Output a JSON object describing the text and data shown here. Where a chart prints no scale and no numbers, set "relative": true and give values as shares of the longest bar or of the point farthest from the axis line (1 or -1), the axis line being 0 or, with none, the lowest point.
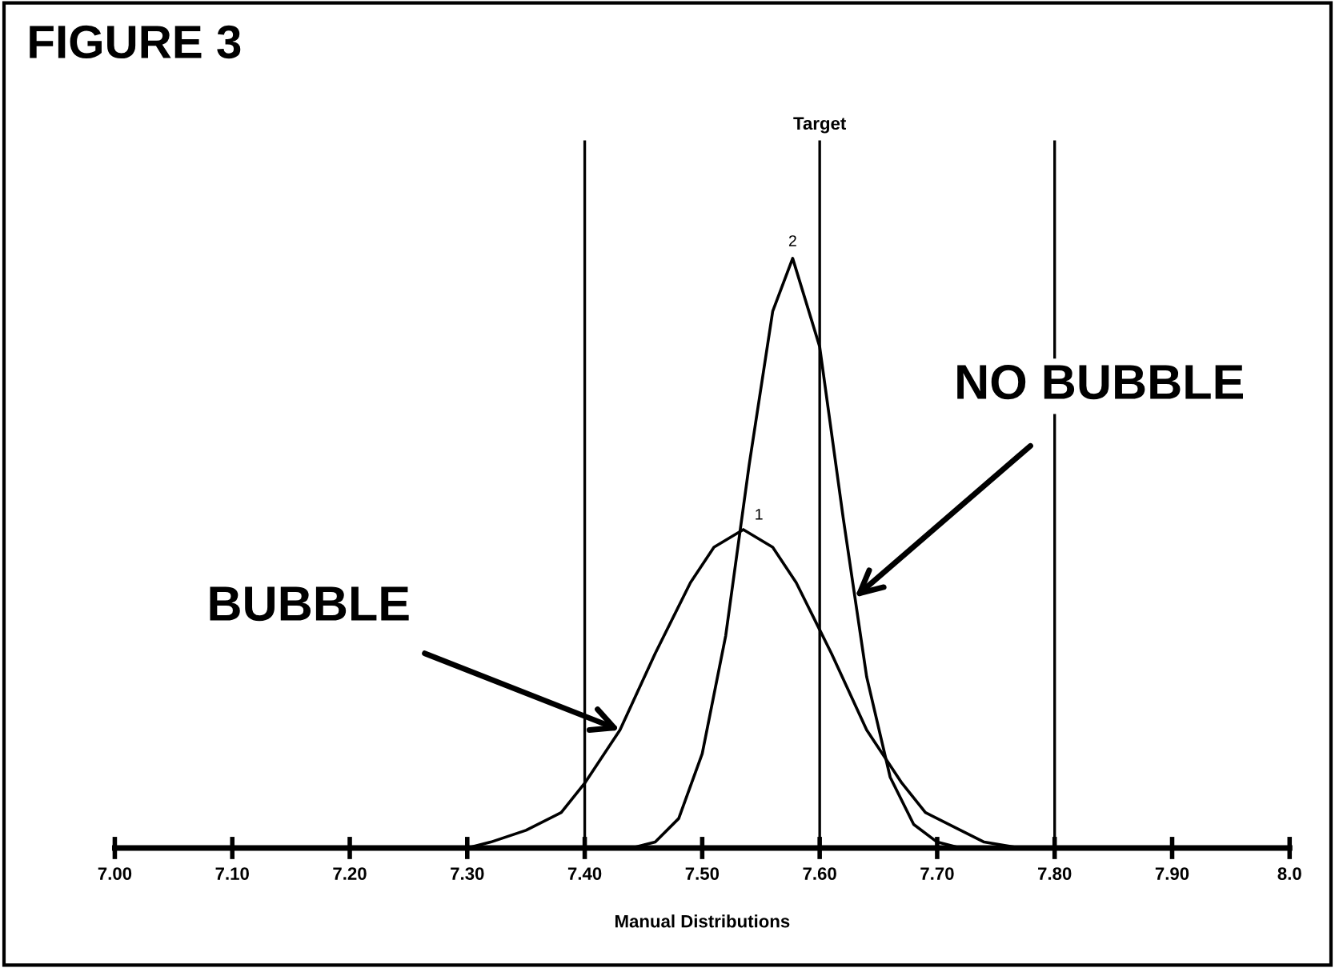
{
  "chart_data": {
    "type": "line",
    "title": "FIGURE 3",
    "xlabel": "Manual Distributions",
    "relative": true,
    "xlim": [
      7.0,
      8.0
    ],
    "xticks": [
      {
        "value": 7.0,
        "label": "7.00"
      },
      {
        "value": 7.1,
        "label": "7.10"
      },
      {
        "value": 7.2,
        "label": "7.20"
      },
      {
        "value": 7.3,
        "label": "7.30"
      },
      {
        "value": 7.4,
        "label": "7.40"
      },
      {
        "value": 7.5,
        "label": "7.50"
      },
      {
        "value": 7.6,
        "label": "7.60"
      },
      {
        "value": 7.7,
        "label": "7.70"
      },
      {
        "value": 7.8,
        "label": "7.80"
      },
      {
        "value": 7.9,
        "label": "7.90"
      },
      {
        "value": 8.0,
        "label": "8.0"
      }
    ],
    "series": [
      {
        "color": "#000000",
        "x": [
          7.3,
          7.32,
          7.35,
          7.38,
          7.4,
          7.43,
          7.46,
          7.49,
          7.51,
          7.535,
          7.56,
          7.58,
          7.61,
          7.64,
          7.67,
          7.69,
          7.72,
          7.74,
          7.77
        ],
        "values": [
          0.0,
          0.01,
          0.03,
          0.06,
          0.11,
          0.2,
          0.33,
          0.45,
          0.51,
          0.54,
          0.51,
          0.45,
          0.33,
          0.2,
          0.11,
          0.06,
          0.03,
          0.01,
          0.0
        ]
      },
      {
        "color": "#000000",
        "x": [
          7.44,
          7.46,
          7.48,
          7.5,
          7.52,
          7.54,
          7.56,
          7.577,
          7.6,
          7.62,
          7.64,
          7.66,
          7.68,
          7.7,
          7.72
        ],
        "values": [
          0.0,
          0.01,
          0.05,
          0.16,
          0.36,
          0.65,
          0.91,
          1.0,
          0.85,
          0.56,
          0.29,
          0.12,
          0.04,
          0.01,
          0.0
        ]
      }
    ],
    "ref_lines": [
      {
        "axis": "x",
        "value": 7.4
      },
      {
        "axis": "x",
        "value": 7.6,
        "label": "Target"
      },
      {
        "axis": "x",
        "value": 7.8
      }
    ],
    "annotations": [
      {
        "text": "1",
        "x": 7.535,
        "y": 0.54
      },
      {
        "text": "2",
        "x": 7.577,
        "y": 1.0
      },
      {
        "text": "BUBBLE",
        "x": 7.43,
        "y": 0.2
      },
      {
        "text": "NO BUBBLE",
        "x": 7.63,
        "y": 0.425
      }
    ],
    "grid": false,
    "legend": false,
    "marker": "none",
    "line_style": "solid"
  }
}
